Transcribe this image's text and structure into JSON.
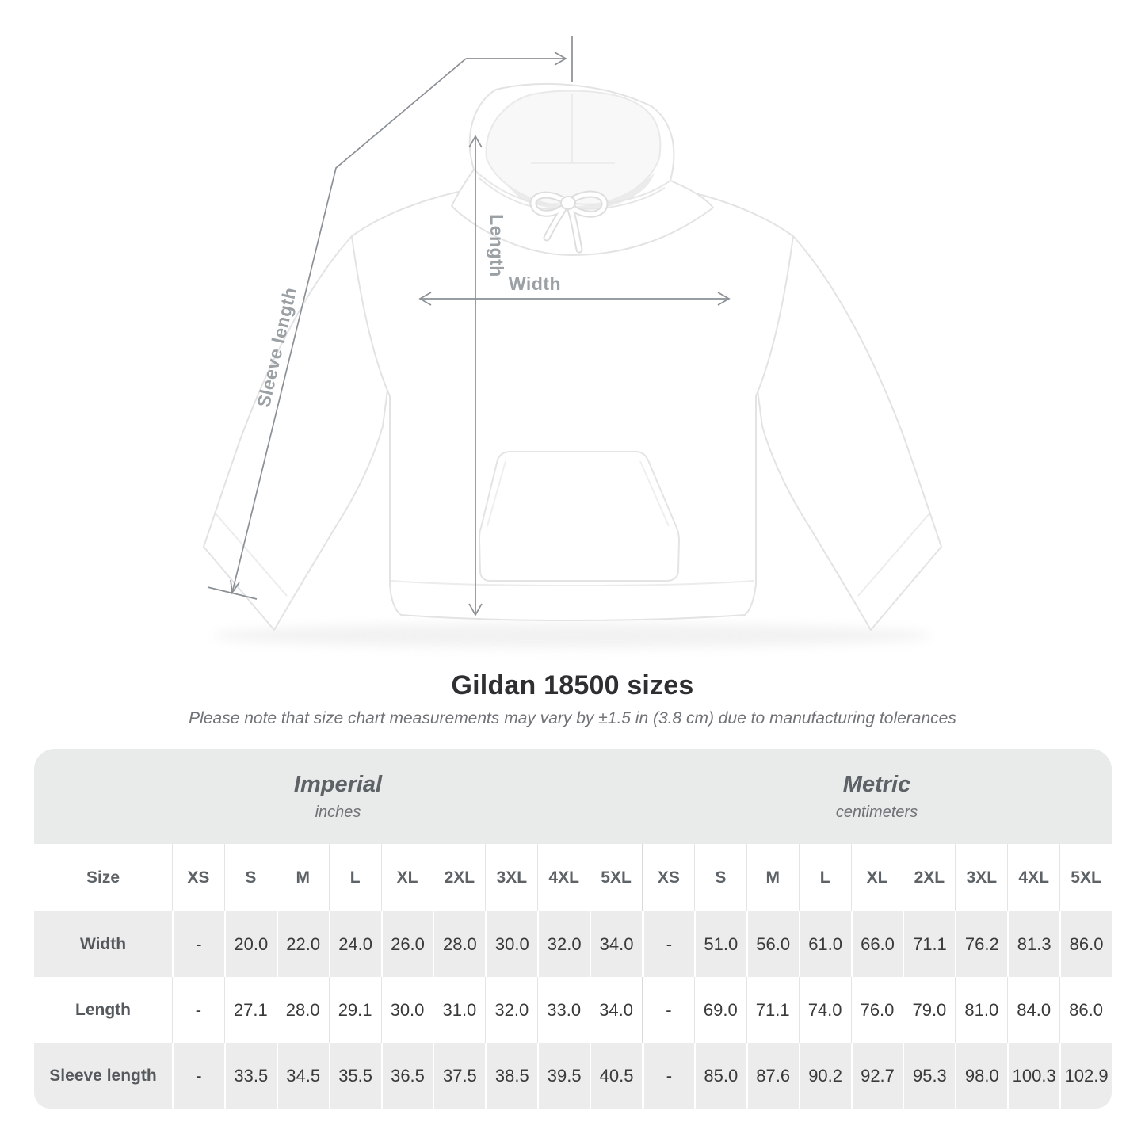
{
  "figure": {
    "measure_labels": {
      "length": "Length",
      "width": "Width",
      "sleeve_length": "Sleeve length"
    }
  },
  "heading": {
    "title": "Gildan 18500 sizes",
    "subtitle": "Please note that size chart measurements may vary by ±1.5 in (3.8 cm) due to manufacturing tolerances"
  },
  "table": {
    "size_label": "Size",
    "sections": [
      {
        "title": "Imperial",
        "unit": "inches"
      },
      {
        "title": "Metric",
        "unit": "centimeters"
      }
    ],
    "sizes": [
      "XS",
      "S",
      "M",
      "L",
      "XL",
      "2XL",
      "3XL",
      "4XL",
      "5XL"
    ],
    "rows": [
      {
        "label": "Width",
        "imperial": [
          "-",
          "20.0",
          "22.0",
          "24.0",
          "26.0",
          "28.0",
          "30.0",
          "32.0",
          "34.0"
        ],
        "metric": [
          "-",
          "51.0",
          "56.0",
          "61.0",
          "66.0",
          "71.1",
          "76.2",
          "81.3",
          "86.0"
        ]
      },
      {
        "label": "Length",
        "imperial": [
          "-",
          "27.1",
          "28.0",
          "29.1",
          "30.0",
          "31.0",
          "32.0",
          "33.0",
          "34.0"
        ],
        "metric": [
          "-",
          "69.0",
          "71.1",
          "74.0",
          "76.0",
          "79.0",
          "81.0",
          "84.0",
          "86.0"
        ]
      },
      {
        "label": "Sleeve length",
        "imperial": [
          "-",
          "33.5",
          "34.5",
          "35.5",
          "36.5",
          "37.5",
          "38.5",
          "39.5",
          "40.5"
        ],
        "metric": [
          "-",
          "85.0",
          "87.6",
          "90.2",
          "92.7",
          "95.3",
          "98.0",
          "100.3",
          "102.9"
        ]
      }
    ]
  },
  "colors": {
    "band_bg": "#e9eaea",
    "row_alt_bg": "#ececec",
    "header_text": "#5d6266",
    "value_text": "#3a3a3a",
    "measure_line": "#8a9095",
    "measure_label": "#9aa0a4"
  }
}
